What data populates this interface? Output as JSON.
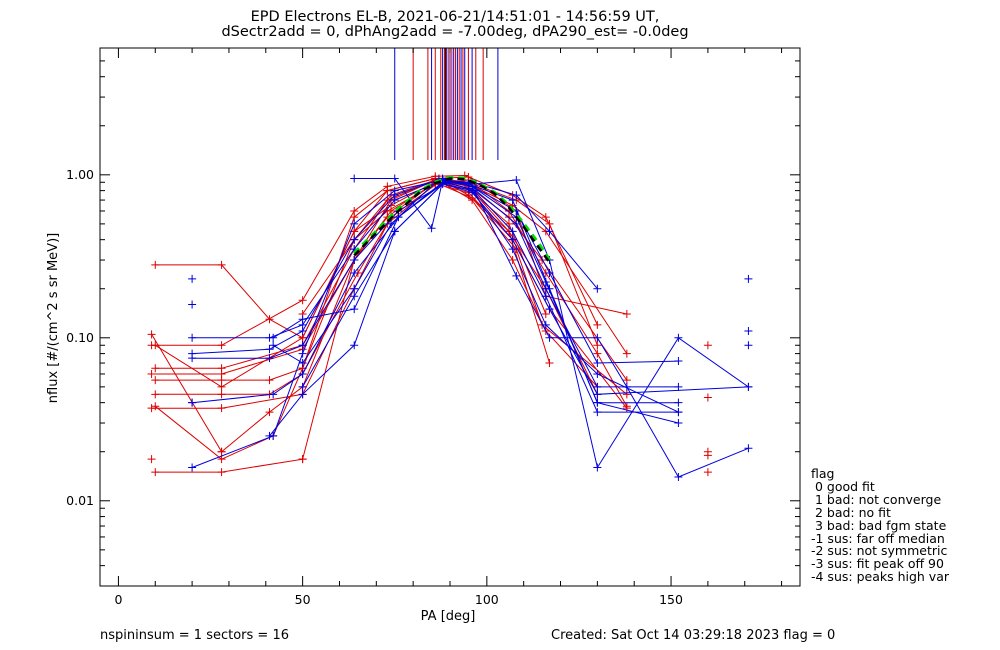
{
  "title": {
    "line1": "EPD Electrons EL-B, 2021-06-21/14:51:01 - 14:56:59 UT,",
    "line2": "dSectr2add = 0, dPhAng2add = -7.00deg, dPA290_est=  -0.0deg"
  },
  "footer": {
    "left": "nspininsum =  1  sectors = 16",
    "right": "Created: Sat Oct 14 03:29:18 2023   flag = 0"
  },
  "legend": {
    "title": "flag",
    "entries": [
      " 0 good fit",
      " 1 bad: not converge",
      " 2 bad: no fit",
      " 3 bad: bad fgm state",
      "-1 sus: far off median",
      "-2 sus: not symmetric",
      "-3 sus: fit peak off 90",
      "-4 sus: peaks high var"
    ]
  },
  "colors": {
    "red": "#dd0000",
    "blue": "#0000dd",
    "green": "#00dd00",
    "black": "#000000"
  },
  "chart_data": {
    "type": "line",
    "title": "EPD Electrons EL-B, 2021-06-21/14:51:01 - 14:56:59 UT,",
    "subtitle": "dSectr2add = 0, dPhAng2add = -7.00deg, dPA290_est=  -0.0deg",
    "xlabel": "PA [deg]",
    "ylabel": "nflux [#/(cm^2 s sr MeV)]",
    "xlim": [
      -5,
      185
    ],
    "ylim": [
      0.003,
      6
    ],
    "yscale": "log",
    "xticks": [
      0,
      50,
      100,
      150
    ],
    "xtick_labels": [
      "0",
      "50",
      "100",
      "150"
    ],
    "yticks": [
      0.01,
      0.1,
      1.0
    ],
    "ytick_labels": [
      "0.01",
      "0.10",
      "1.00"
    ],
    "grid": false,
    "legend_position": "right-bottom",
    "peak_markers": {
      "red_x": [
        80,
        84,
        86,
        87.5,
        88.5,
        89.5,
        90.5,
        91.5,
        92.5,
        93.5,
        95,
        97,
        99
      ],
      "blue_x": [
        75,
        85,
        88,
        89,
        90,
        91,
        92,
        93,
        94,
        96,
        103
      ]
    },
    "series": [
      {
        "color": "red",
        "x": [
          10,
          28,
          41,
          50,
          64,
          73,
          86,
          95,
          108,
          116,
          138
        ],
        "y": [
          0.28,
          0.28,
          0.13,
          0.1,
          0.45,
          0.8,
          0.95,
          0.97,
          0.6,
          0.18,
          0.14
        ]
      },
      {
        "color": "red",
        "x": [
          9,
          28,
          50,
          64,
          73,
          86,
          94,
          107,
          116,
          130
        ],
        "y": [
          0.09,
          0.09,
          0.17,
          0.6,
          0.85,
          0.98,
          0.99,
          0.75,
          0.55,
          0.12
        ]
      },
      {
        "color": "red",
        "x": [
          10,
          28,
          50,
          64,
          73,
          87,
          95,
          108,
          117,
          130
        ],
        "y": [
          0.065,
          0.065,
          0.09,
          0.35,
          0.7,
          0.95,
          0.9,
          0.7,
          0.5,
          0.09
        ]
      },
      {
        "color": "red",
        "x": [
          9,
          28,
          50,
          64,
          74,
          87,
          95,
          107,
          116,
          138
        ],
        "y": [
          0.06,
          0.06,
          0.085,
          0.3,
          0.6,
          0.92,
          0.88,
          0.65,
          0.45,
          0.08
        ]
      },
      {
        "color": "red",
        "x": [
          10,
          28,
          41,
          50,
          64,
          74,
          86,
          95,
          106,
          115,
          138
        ],
        "y": [
          0.055,
          0.055,
          0.055,
          0.065,
          0.4,
          0.75,
          0.93,
          0.85,
          0.55,
          0.3,
          0.055
        ]
      },
      {
        "color": "red",
        "x": [
          10,
          28,
          41,
          50,
          65,
          74,
          87,
          96,
          106,
          116,
          130
        ],
        "y": [
          0.045,
          0.045,
          0.045,
          0.06,
          0.25,
          0.55,
          0.9,
          0.8,
          0.45,
          0.2,
          0.045
        ]
      },
      {
        "color": "red",
        "x": [
          9,
          28,
          50,
          64,
          73,
          86,
          95,
          107,
          117,
          138
        ],
        "y": [
          0.037,
          0.037,
          0.045,
          0.2,
          0.5,
          0.88,
          0.78,
          0.4,
          0.15,
          0.037
        ]
      },
      {
        "color": "red",
        "x": [
          10,
          28,
          50,
          64,
          73,
          86,
          96,
          108,
          115,
          138
        ],
        "y": [
          0.015,
          0.015,
          0.018,
          0.3,
          0.55,
          0.9,
          0.72,
          0.35,
          0.12,
          0.045
        ]
      },
      {
        "color": "red",
        "x": [
          9,
          28,
          41,
          50,
          64,
          74,
          87,
          95,
          106,
          117
        ],
        "y": [
          0.105,
          0.02,
          0.035,
          0.05,
          0.3,
          0.7,
          0.95,
          0.75,
          0.45,
          0.07
        ]
      },
      {
        "color": "red",
        "x": [
          10,
          28,
          42,
          50,
          64,
          73,
          86,
          96,
          107,
          116,
          130
        ],
        "y": [
          0.038,
          0.018,
          0.025,
          0.065,
          0.55,
          0.8,
          0.95,
          0.7,
          0.3,
          0.11,
          0.05
        ]
      },
      {
        "color": "red",
        "x": [
          10,
          28,
          50,
          64,
          74,
          87,
          95,
          106,
          116
        ],
        "y": [
          0.09,
          0.05,
          0.1,
          0.45,
          0.65,
          0.93,
          0.82,
          0.5,
          0.14
        ]
      },
      {
        "color": "red",
        "x": [
          50,
          64,
          73,
          86,
          95,
          106,
          116,
          130,
          138
        ],
        "y": [
          0.14,
          0.4,
          0.6,
          0.88,
          0.93,
          0.6,
          0.25,
          0.08,
          0.038
        ]
      },
      {
        "color": "blue",
        "x": [
          20,
          41,
          50,
          64,
          75,
          88,
          96,
          108,
          117,
          130
        ],
        "y": [
          0.1,
          0.1,
          0.12,
          0.35,
          0.7,
          0.92,
          0.9,
          0.75,
          0.45,
          0.2
        ]
      },
      {
        "color": "blue",
        "x": [
          20,
          41,
          50,
          64,
          75,
          88,
          96,
          108,
          117,
          130,
          152
        ],
        "y": [
          0.08,
          0.085,
          0.11,
          0.4,
          0.75,
          0.95,
          0.85,
          0.6,
          0.25,
          0.07,
          0.072
        ]
      },
      {
        "color": "blue",
        "x": [
          20,
          41,
          50,
          64,
          76,
          89,
          97,
          108,
          116,
          130,
          152
        ],
        "y": [
          0.075,
          0.075,
          0.09,
          0.3,
          0.6,
          0.9,
          0.8,
          0.5,
          0.2,
          0.05,
          0.05
        ]
      },
      {
        "color": "blue",
        "x": [
          20,
          42,
          50,
          64,
          76,
          88,
          96,
          107,
          117,
          130,
          171
        ],
        "y": [
          0.04,
          0.045,
          0.06,
          0.25,
          0.55,
          0.88,
          0.78,
          0.4,
          0.15,
          0.045,
          0.05
        ]
      },
      {
        "color": "blue",
        "x": [
          20,
          42,
          50,
          64,
          75,
          88,
          96,
          108,
          116,
          130,
          152
        ],
        "y": [
          0.016,
          0.025,
          0.08,
          0.5,
          0.8,
          0.93,
          0.85,
          0.55,
          0.22,
          0.04,
          0.04
        ]
      },
      {
        "color": "blue",
        "x": [
          41,
          50,
          64,
          75,
          89,
          97,
          108,
          117,
          130,
          152,
          171
        ],
        "y": [
          0.025,
          0.045,
          0.09,
          0.45,
          0.92,
          0.88,
          0.93,
          0.3,
          0.016,
          0.1,
          0.05
        ]
      },
      {
        "color": "blue",
        "x": [
          42,
          50,
          64,
          76,
          88,
          96,
          107,
          116,
          130,
          152
        ],
        "y": [
          0.1,
          0.13,
          0.15,
          0.55,
          0.9,
          0.82,
          0.45,
          0.18,
          0.035,
          0.035
        ]
      },
      {
        "color": "blue",
        "x": [
          42,
          50,
          64,
          74,
          87,
          95,
          107,
          117,
          130,
          152
        ],
        "y": [
          0.09,
          0.07,
          0.2,
          0.5,
          0.94,
          0.88,
          0.7,
          0.2,
          0.04,
          0.03
        ]
      },
      {
        "color": "blue",
        "x": [
          64,
          75,
          85,
          88,
          96,
          108,
          117,
          130,
          138,
          152,
          171
        ],
        "y": [
          0.95,
          0.95,
          0.47,
          0.92,
          0.85,
          0.24,
          0.1,
          0.1,
          0.05,
          0.014,
          0.021
        ]
      },
      {
        "color": "blue",
        "x": [
          50,
          64,
          75,
          88,
          96,
          107,
          116,
          130,
          152
        ],
        "y": [
          0.05,
          0.18,
          0.45,
          0.88,
          0.8,
          0.35,
          0.12,
          0.06,
          0.035
        ]
      },
      {
        "color": "green",
        "style": "dashed",
        "x": [
          64,
          70,
          76,
          82,
          86,
          90,
          94,
          98,
          102,
          106,
          110,
          114,
          117
        ],
        "y": [
          0.33,
          0.45,
          0.62,
          0.8,
          0.9,
          0.96,
          0.95,
          0.88,
          0.78,
          0.65,
          0.5,
          0.38,
          0.3
        ]
      },
      {
        "color": "black",
        "style": "dashed",
        "x": [
          64,
          70,
          76,
          82,
          86,
          90,
          94,
          98,
          102,
          106,
          110,
          114,
          117
        ],
        "y": [
          0.32,
          0.44,
          0.6,
          0.79,
          0.89,
          0.95,
          0.94,
          0.87,
          0.77,
          0.63,
          0.48,
          0.36,
          0.29
        ]
      }
    ],
    "scatter_points": [
      {
        "color": "red",
        "x": 9,
        "y": 0.018
      },
      {
        "color": "red",
        "x": 28,
        "y": 0.02
      },
      {
        "color": "red",
        "x": 50,
        "y": 0.018
      },
      {
        "color": "red",
        "x": 160,
        "y": 0.09
      },
      {
        "color": "red",
        "x": 160,
        "y": 0.043
      },
      {
        "color": "red",
        "x": 160,
        "y": 0.02
      },
      {
        "color": "red",
        "x": 160,
        "y": 0.019
      },
      {
        "color": "red",
        "x": 160,
        "y": 0.015
      },
      {
        "color": "blue",
        "x": 20,
        "y": 0.23
      },
      {
        "color": "blue",
        "x": 20,
        "y": 0.16
      },
      {
        "color": "blue",
        "x": 20,
        "y": 0.04
      },
      {
        "color": "blue",
        "x": 171,
        "y": 0.23
      },
      {
        "color": "blue",
        "x": 171,
        "y": 0.11
      },
      {
        "color": "blue",
        "x": 171,
        "y": 0.09
      }
    ]
  }
}
